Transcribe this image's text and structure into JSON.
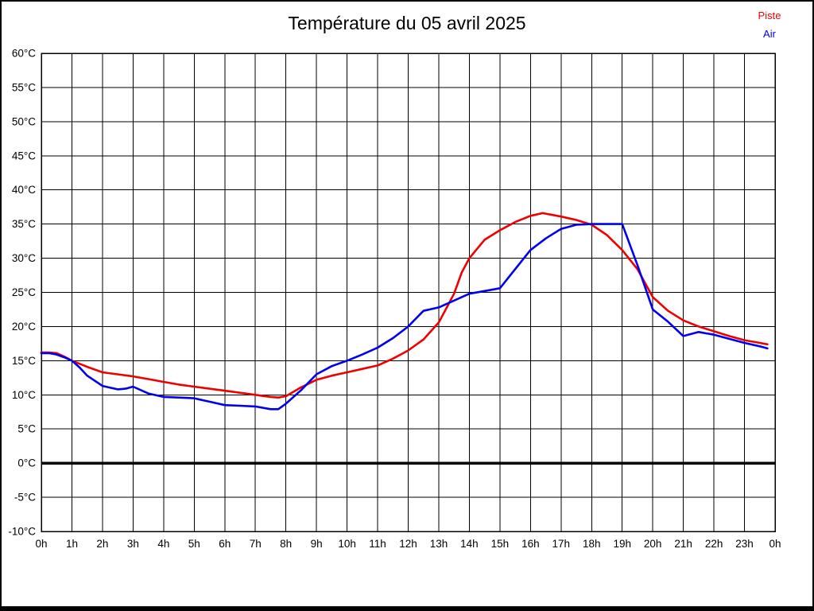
{
  "title": "Température du 05 avril 2025",
  "chart_data": {
    "type": "line",
    "title": "Température du 05 avril 2025",
    "xlabel": "",
    "ylabel": "",
    "xlim": [
      0,
      24
    ],
    "ylim": [
      -10,
      60
    ],
    "grid": true,
    "legend_position": "top-right",
    "axis_color": "#000000",
    "grid_color": "#000000",
    "zero_line": {
      "value": 0,
      "width": 3.5
    },
    "x_ticks": {
      "hours": [
        0,
        1,
        2,
        3,
        4,
        5,
        6,
        7,
        8,
        9,
        10,
        11,
        12,
        13,
        14,
        15,
        16,
        17,
        18,
        19,
        20,
        21,
        22,
        23,
        24
      ],
      "labels": [
        "0h",
        "1h",
        "2h",
        "3h",
        "4h",
        "5h",
        "6h",
        "7h",
        "8h",
        "9h",
        "10h",
        "11h",
        "12h",
        "13h",
        "14h",
        "15h",
        "16h",
        "17h",
        "18h",
        "19h",
        "20h",
        "21h",
        "22h",
        "23h",
        "0h"
      ]
    },
    "y_ticks": {
      "values": [
        60,
        55,
        50,
        45,
        40,
        35,
        30,
        25,
        20,
        15,
        10,
        5,
        0,
        -5,
        -10
      ],
      "labels": [
        "60°C",
        "55°C",
        "50°C",
        "45°C",
        "40°C",
        "35°C",
        "30°C",
        "25°C",
        "20°C",
        "15°C",
        "10°C",
        "5°C",
        "0°C",
        "-5°C",
        "-10°C"
      ]
    },
    "series": [
      {
        "name": "Piste",
        "color": "#ee0000",
        "points": [
          [
            0,
            16.2
          ],
          [
            0.25,
            16.2
          ],
          [
            0.5,
            16.1
          ],
          [
            0.75,
            15.6
          ],
          [
            1,
            15.0
          ],
          [
            1.5,
            14.1
          ],
          [
            2,
            13.3
          ],
          [
            2.5,
            13.0
          ],
          [
            3,
            12.7
          ],
          [
            3.5,
            12.3
          ],
          [
            4,
            11.9
          ],
          [
            4.5,
            11.5
          ],
          [
            5,
            11.2
          ],
          [
            5.5,
            10.9
          ],
          [
            6,
            10.6
          ],
          [
            6.5,
            10.3
          ],
          [
            7,
            10.0
          ],
          [
            7.5,
            9.7
          ],
          [
            7.75,
            9.6
          ],
          [
            8,
            9.8
          ],
          [
            8.5,
            11.1
          ],
          [
            9,
            12.2
          ],
          [
            9.5,
            12.8
          ],
          [
            10,
            13.3
          ],
          [
            10.5,
            13.8
          ],
          [
            11,
            14.3
          ],
          [
            11.5,
            15.3
          ],
          [
            12,
            16.5
          ],
          [
            12.5,
            18.1
          ],
          [
            13,
            20.6
          ],
          [
            13.5,
            24.8
          ],
          [
            13.75,
            27.9
          ],
          [
            14,
            30.0
          ],
          [
            14.5,
            32.7
          ],
          [
            15,
            34.1
          ],
          [
            15.5,
            35.3
          ],
          [
            16,
            36.2
          ],
          [
            16.4,
            36.6
          ],
          [
            17,
            36.1
          ],
          [
            17.5,
            35.6
          ],
          [
            18,
            34.9
          ],
          [
            18.5,
            33.4
          ],
          [
            19,
            31.2
          ],
          [
            19.5,
            28.4
          ],
          [
            20,
            24.3
          ],
          [
            20.5,
            22.3
          ],
          [
            21,
            20.9
          ],
          [
            21.5,
            20.0
          ],
          [
            22,
            19.3
          ],
          [
            22.5,
            18.6
          ],
          [
            23,
            18.0
          ],
          [
            23.5,
            17.6
          ],
          [
            23.75,
            17.4
          ]
        ]
      },
      {
        "name": "Air",
        "color": "#0000ee",
        "points": [
          [
            0,
            16.1
          ],
          [
            0.25,
            16.1
          ],
          [
            0.5,
            15.9
          ],
          [
            0.75,
            15.5
          ],
          [
            1,
            15.0
          ],
          [
            1.25,
            14.0
          ],
          [
            1.5,
            12.8
          ],
          [
            2,
            11.3
          ],
          [
            2.5,
            10.8
          ],
          [
            2.75,
            10.9
          ],
          [
            3,
            11.2
          ],
          [
            3.5,
            10.2
          ],
          [
            4,
            9.7
          ],
          [
            4.5,
            9.6
          ],
          [
            5,
            9.5
          ],
          [
            5.5,
            9.0
          ],
          [
            6,
            8.5
          ],
          [
            6.5,
            8.4
          ],
          [
            7,
            8.3
          ],
          [
            7.5,
            7.9
          ],
          [
            7.75,
            7.9
          ],
          [
            8,
            8.7
          ],
          [
            8.5,
            10.7
          ],
          [
            9,
            13.0
          ],
          [
            9.5,
            14.2
          ],
          [
            10,
            15.0
          ],
          [
            10.5,
            15.9
          ],
          [
            11,
            16.9
          ],
          [
            11.5,
            18.3
          ],
          [
            12,
            20.0
          ],
          [
            12.5,
            22.3
          ],
          [
            13,
            22.8
          ],
          [
            13.5,
            23.8
          ],
          [
            14,
            24.8
          ],
          [
            14.5,
            25.2
          ],
          [
            15,
            25.6
          ],
          [
            15.5,
            28.4
          ],
          [
            16,
            31.2
          ],
          [
            16.5,
            32.9
          ],
          [
            17,
            34.3
          ],
          [
            17.5,
            34.9
          ],
          [
            18,
            35.0
          ],
          [
            18.5,
            35.0
          ],
          [
            19,
            35.0
          ],
          [
            19.5,
            29.0
          ],
          [
            20,
            22.5
          ],
          [
            20.5,
            20.7
          ],
          [
            21,
            18.6
          ],
          [
            21.5,
            19.2
          ],
          [
            22,
            18.8
          ],
          [
            22.5,
            18.2
          ],
          [
            23,
            17.6
          ],
          [
            23.5,
            17.1
          ],
          [
            23.75,
            16.8
          ]
        ]
      }
    ]
  }
}
